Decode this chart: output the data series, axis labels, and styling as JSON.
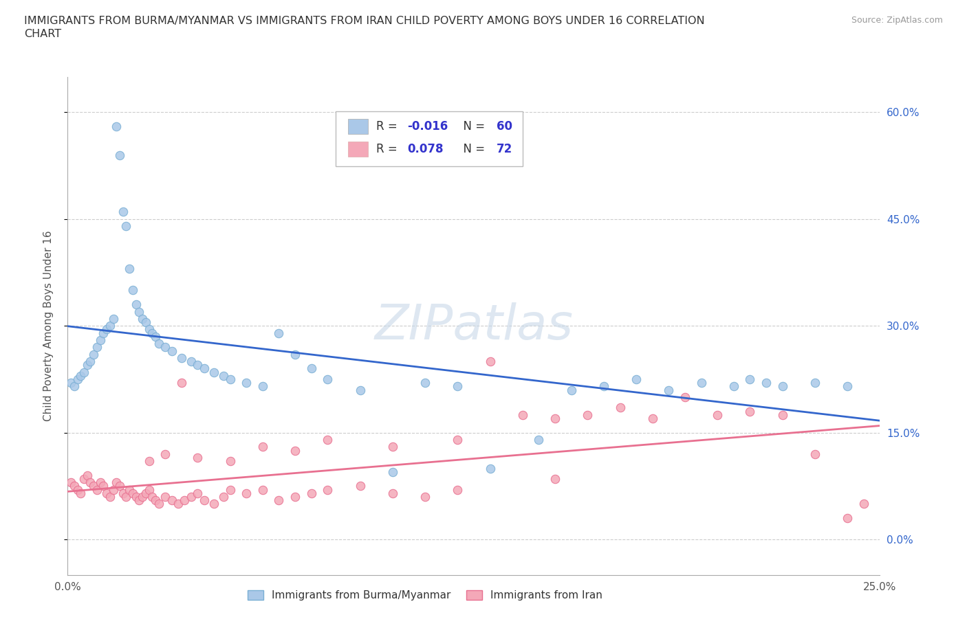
{
  "title_line1": "IMMIGRANTS FROM BURMA/MYANMAR VS IMMIGRANTS FROM IRAN CHILD POVERTY AMONG BOYS UNDER 16 CORRELATION",
  "title_line2": "CHART",
  "source": "Source: ZipAtlas.com",
  "ylabel": "Child Poverty Among Boys Under 16",
  "xlim": [
    0.0,
    0.25
  ],
  "ylim": [
    -0.05,
    0.65
  ],
  "yticks": [
    0.0,
    0.15,
    0.3,
    0.45,
    0.6
  ],
  "ytick_labels": [
    "0.0%",
    "15.0%",
    "30.0%",
    "45.0%",
    "60.0%"
  ],
  "grid_color": "#cccccc",
  "watermark_text": "ZIPatlas",
  "series1_label": "Immigrants from Burma/Myanmar",
  "series2_label": "Immigrants from Iran",
  "series1_color": "#aac8e8",
  "series2_color": "#f4a8b8",
  "series1_edge_color": "#7aafd4",
  "series2_edge_color": "#e87090",
  "series1_line_color": "#3366cc",
  "series2_line_color": "#e87090",
  "legend_R1": "-0.016",
  "legend_N1": "60",
  "legend_R2": "0.078",
  "legend_N2": "72",
  "legend_text_color": "#3333cc",
  "legend_label_color": "#333333",
  "title_color": "#333333",
  "source_color": "#999999"
}
